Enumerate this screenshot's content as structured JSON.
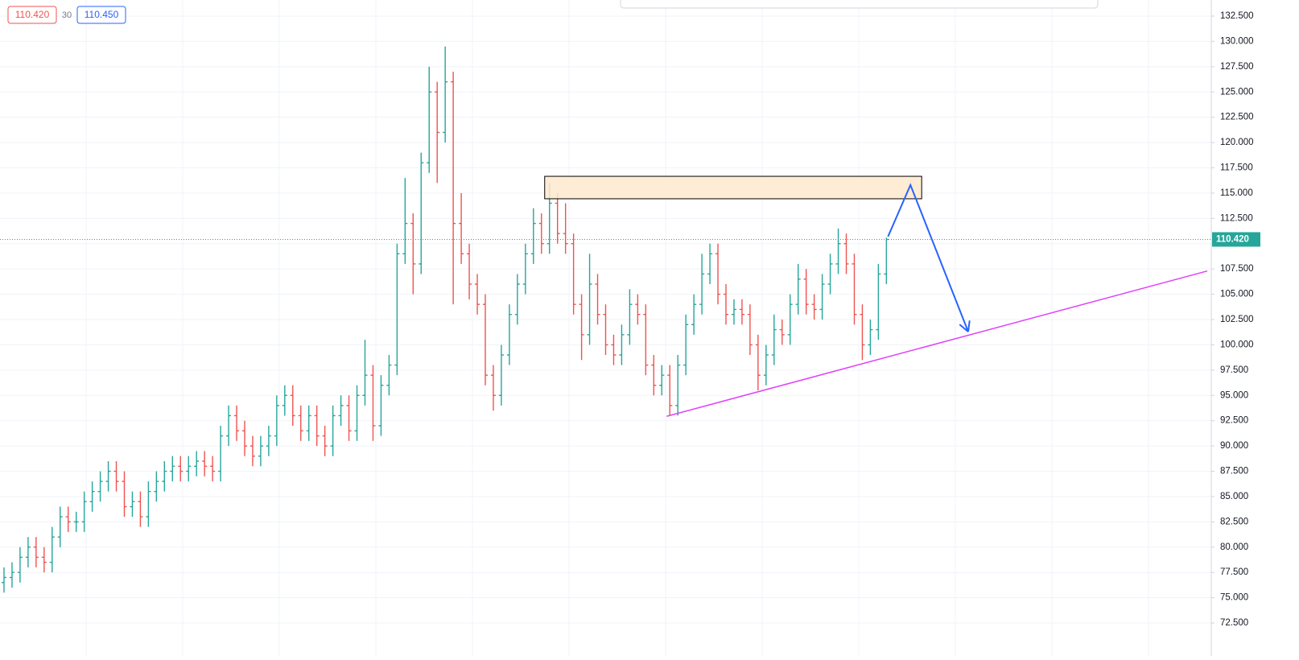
{
  "chart_data": {
    "type": "ohlc",
    "header": [
      "110.420",
      "30",
      "110.450"
    ],
    "last_price": {
      "value": 110.42,
      "label": "110.420"
    },
    "up_color": "#26a69a",
    "down_color": "#ef5350",
    "xlim": [
      -0.5,
      150.5
    ],
    "ylim": [
      71.23,
      134.09
    ],
    "yticks": [
      {
        "value": 72.5,
        "label": "72.500"
      },
      {
        "value": 75,
        "label": "75.000"
      },
      {
        "value": 77.5,
        "label": "77.500"
      },
      {
        "value": 80,
        "label": "80.000"
      },
      {
        "value": 82.5,
        "label": "82.500"
      },
      {
        "value": 85,
        "label": "85.000"
      },
      {
        "value": 87.5,
        "label": "87.500"
      },
      {
        "value": 90,
        "label": "90.000"
      },
      {
        "value": 92.5,
        "label": "92.500"
      },
      {
        "value": 95,
        "label": "95.000"
      },
      {
        "value": 97.5,
        "label": "97.500"
      },
      {
        "value": 100,
        "label": "100.000"
      },
      {
        "value": 102.5,
        "label": "102.500"
      },
      {
        "value": 105,
        "label": "105.000"
      },
      {
        "value": 107.5,
        "label": "107.500"
      },
      {
        "value": 110,
        "label": "110.000"
      },
      {
        "value": 112.5,
        "label": "112.500"
      },
      {
        "value": 115,
        "label": "115.000"
      },
      {
        "value": 117.5,
        "label": "117.500"
      },
      {
        "value": 120,
        "label": "120.000"
      },
      {
        "value": 122.5,
        "label": "122.500"
      },
      {
        "value": 125,
        "label": "125.000"
      },
      {
        "value": 127.5,
        "label": "127.500"
      },
      {
        "value": 130,
        "label": "130.000"
      },
      {
        "value": 132.5,
        "label": "132.500"
      }
    ],
    "grid": true,
    "open": [
      76.5,
      77,
      77.5,
      79,
      80,
      79,
      78.5,
      81,
      83,
      82.5,
      82.5,
      84.5,
      85.5,
      86.5,
      87.5,
      86.5,
      84,
      84.5,
      83,
      85.5,
      86.5,
      87.5,
      88,
      87.5,
      88,
      88.5,
      88,
      87.5,
      91,
      93,
      91.5,
      90,
      89,
      90,
      91,
      94,
      95,
      93,
      91.5,
      93,
      91,
      90,
      93,
      94,
      91.5,
      95,
      97,
      92,
      96,
      98,
      109,
      112,
      108,
      118,
      125,
      121,
      126,
      112,
      109,
      106,
      104,
      97,
      95,
      99,
      103,
      106,
      109,
      112,
      110,
      114,
      111,
      110,
      104,
      101,
      106,
      103,
      100,
      99,
      101,
      104,
      103,
      98,
      96,
      97,
      94,
      98,
      102,
      104,
      107,
      109,
      105,
      103,
      103.5,
      103,
      100,
      97,
      99,
      101.5,
      101,
      104,
      106.5,
      104,
      103.5,
      106,
      108,
      110,
      108,
      103,
      100,
      101.5,
      107
    ],
    "high": [
      78,
      78.5,
      80,
      81,
      81,
      80,
      82,
      84,
      84,
      83.5,
      85.5,
      86.5,
      87.5,
      88.5,
      88.5,
      87.5,
      85.5,
      85.5,
      86.5,
      87.5,
      88.5,
      89,
      89,
      89,
      89.5,
      89.5,
      89,
      92,
      94,
      94,
      92.5,
      91,
      91,
      92,
      95,
      96,
      96,
      94,
      94,
      94,
      92,
      94,
      95,
      95,
      96,
      100.5,
      98,
      97,
      99,
      110,
      116.5,
      113,
      119,
      127.5,
      126,
      129.5,
      127,
      115,
      110,
      107,
      105,
      98,
      100,
      104,
      107,
      110,
      113.5,
      113,
      116,
      115,
      114,
      111,
      105,
      109,
      107,
      104,
      101,
      102,
      105.5,
      105,
      104,
      99,
      98,
      98,
      99,
      103,
      105,
      109,
      110,
      110,
      106,
      104.5,
      104.5,
      104,
      101,
      100,
      103,
      102.5,
      105,
      108,
      107.5,
      105,
      107,
      109,
      111.5,
      111,
      109,
      104,
      102.5,
      108,
      110.6
    ],
    "low": [
      75.5,
      76,
      76.5,
      78,
      78,
      77.5,
      77.5,
      80,
      81.5,
      81.5,
      81.5,
      83.5,
      84.5,
      85.5,
      85.5,
      83,
      83,
      82,
      82,
      84.5,
      85.5,
      86.5,
      86.5,
      86.5,
      87,
      87,
      86.5,
      86.5,
      90,
      90.5,
      89,
      88,
      88,
      89,
      90,
      93,
      92,
      90.5,
      90.5,
      90,
      89,
      89,
      92,
      90.5,
      90.5,
      94,
      90.5,
      91,
      95,
      97,
      108,
      105,
      107,
      117,
      116,
      120,
      104,
      108,
      104.5,
      103,
      96,
      93.5,
      94,
      98,
      102,
      105,
      108,
      109,
      109,
      110,
      109,
      103,
      98.5,
      100,
      102,
      99,
      98,
      98,
      100,
      102,
      97,
      95,
      95,
      93,
      93,
      97,
      101,
      103,
      106,
      104,
      102,
      102,
      102,
      99,
      95.5,
      96,
      98,
      100,
      100,
      103,
      103,
      102.5,
      102.5,
      105,
      107,
      107,
      102,
      98.5,
      99,
      100.5,
      106
    ],
    "close": [
      77,
      77.5,
      79,
      80,
      79,
      78.5,
      81,
      83,
      82.5,
      82.5,
      84.5,
      85.5,
      86.5,
      87.5,
      86.5,
      84,
      84.5,
      83,
      85.5,
      86.5,
      87.5,
      88,
      87.5,
      88,
      88.5,
      88,
      87.5,
      91,
      93,
      91.5,
      90,
      89,
      90,
      91,
      94,
      95,
      93,
      91.5,
      93,
      91,
      90,
      93,
      94,
      91.5,
      95,
      97,
      92,
      96,
      98,
      109,
      112,
      108,
      118,
      125,
      121,
      126,
      112,
      109,
      106,
      104,
      97,
      95,
      99,
      103,
      106,
      109,
      112,
      110,
      114,
      111,
      110,
      104,
      101,
      106,
      103,
      100,
      99,
      101,
      104,
      103,
      98,
      96,
      97,
      94,
      98,
      102,
      104,
      107,
      109,
      105,
      103,
      103.5,
      103,
      100,
      97,
      99,
      101.5,
      101,
      104,
      106.5,
      104,
      103.5,
      106,
      108,
      110,
      108,
      103,
      100,
      101.5,
      107,
      110.42
    ],
    "drawings": {
      "zone": {
        "x": [
          67.4,
          114.4
        ],
        "y": [
          116.66,
          114.44
        ],
        "color": "#ffe9cc"
      },
      "trendline": {
        "x": [
          82.6,
          150
        ],
        "y": [
          92.93,
          107.3
        ],
        "color": "#e040fb"
      },
      "projection": {
        "x": [
          110.2,
          113,
          120.2
        ],
        "y": [
          110.7,
          115.8,
          101.3
        ],
        "color": "#2962ff"
      }
    }
  }
}
